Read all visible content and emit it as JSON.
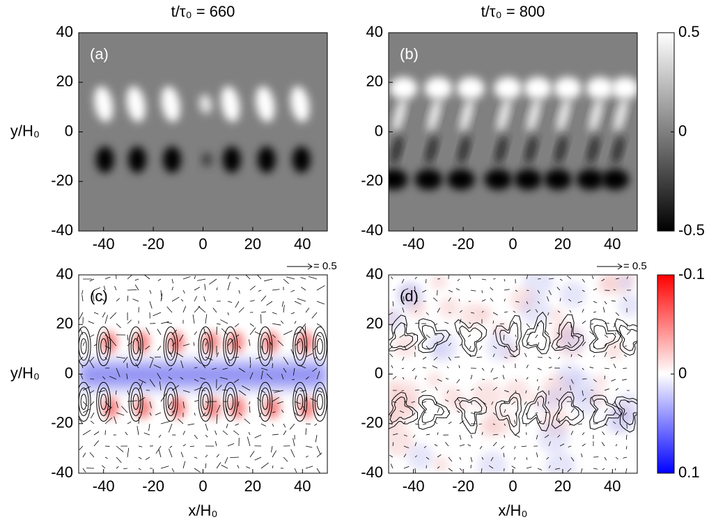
{
  "chart_data": [
    {
      "type": "heatmap",
      "title": "t/τ₀ = 660",
      "label": "(a)",
      "xlim": [
        -50,
        50
      ],
      "ylim": [
        -40,
        40
      ],
      "xticks": [
        -40,
        -20,
        0,
        20,
        40
      ],
      "yticks": [
        -40,
        -20,
        0,
        20,
        40
      ],
      "ylabel": "y/H₀"
    },
    {
      "type": "heatmap",
      "title": "t/τ₀ = 800",
      "label": "(b)",
      "xlim": [
        -50,
        50
      ],
      "ylim": [
        -40,
        40
      ],
      "xticks": [
        -40,
        -20,
        0,
        20,
        40
      ],
      "yticks": [
        -40,
        -20,
        0,
        20,
        40
      ],
      "colorbar": {
        "ylim": [
          -0.5,
          0.5
        ],
        "yticks": [
          -0.5,
          0,
          0.5
        ],
        "colors": [
          "#000000",
          "#ffffff"
        ]
      }
    },
    {
      "type": "heatmap",
      "label": "(c)",
      "xlim": [
        -50,
        50
      ],
      "ylim": [
        -40,
        40
      ],
      "xticks": [
        -40,
        -20,
        0,
        20,
        40
      ],
      "yticks": [
        -40,
        -20,
        0,
        20,
        40
      ],
      "ylabel": "y/H₀",
      "xlabel": "x/H₀",
      "arrow_key": "= 0.5"
    },
    {
      "type": "heatmap",
      "label": "(d)",
      "xlim": [
        -50,
        50
      ],
      "ylim": [
        -40,
        40
      ],
      "xticks": [
        -40,
        -20,
        0,
        20,
        40
      ],
      "yticks": [
        -40,
        -20,
        0,
        20,
        40
      ],
      "xlabel": "x/H₀",
      "arrow_key": "= 0.5",
      "colorbar": {
        "ylim": [
          0.1,
          -0.1
        ],
        "yticks": [
          -0.1,
          0,
          0.1
        ],
        "colors": [
          "#0000ff",
          "#ffffff",
          "#ff0000"
        ]
      }
    }
  ]
}
